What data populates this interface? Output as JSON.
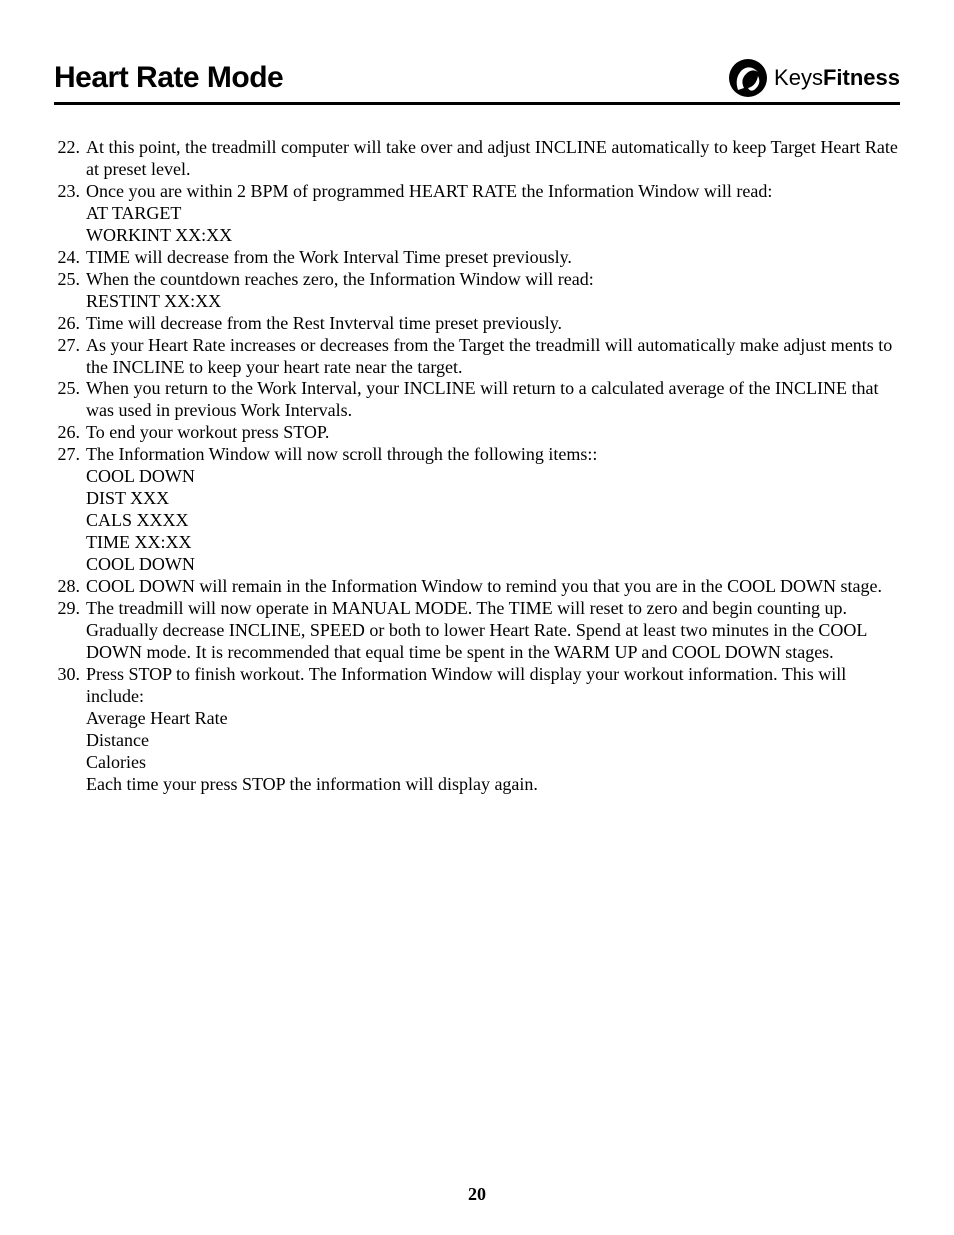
{
  "header": {
    "title": "Heart Rate Mode",
    "logo_text_normal": "Keys",
    "logo_text_bold": "Fitness"
  },
  "colors": {
    "text": "#000000",
    "rule": "#000000",
    "background": "#ffffff"
  },
  "typography": {
    "title_font": "Arial",
    "title_size_pt": 22,
    "title_weight": 900,
    "body_font": "Times New Roman",
    "body_size_pt": 13,
    "line_height": 1.22
  },
  "items": [
    {
      "num": "22.",
      "lines": [
        "At this point, the treadmill computer will take over and adjust INCLINE automatically to keep Target Heart Rate at preset level."
      ]
    },
    {
      "num": "23.",
      "lines": [
        "Once you are within 2 BPM of programmed HEART RATE the Information Window will read:",
        "AT TARGET",
        "WORKINT XX:XX"
      ]
    },
    {
      "num": "24.",
      "lines": [
        "TIME will decrease from the Work Interval Time preset previously."
      ]
    },
    {
      "num": "25.",
      "lines": [
        "When the countdown reaches zero, the Information Window will read:",
        "RESTINT XX:XX"
      ]
    },
    {
      "num": "26.",
      "lines": [
        "Time will decrease from the Rest Invterval time preset previously."
      ]
    },
    {
      "num": "27.",
      "lines": [
        "As your  Heart Rate increases or decreases from the Target the treadmill will automatically make adjust ments to the INCLINE to keep your heart rate near the target."
      ]
    },
    {
      "num": "25.",
      "lines": [
        "When you return to the Work Interval, your INCLINE will return to a calculated average of the INCLINE that was used in previous Work Intervals."
      ]
    },
    {
      "num": "26.",
      "lines": [
        "To end your workout press STOP."
      ]
    },
    {
      "num": "27.",
      "lines": [
        "The Information Window will now scroll through the following items::",
        "COOL DOWN",
        "DIST XXX",
        "CALS XXXX",
        "TIME XX:XX",
        "COOL DOWN"
      ]
    },
    {
      "num": "28.",
      "lines": [
        "COOL DOWN will remain in the Information Window to remind you that you are in the COOL DOWN stage."
      ]
    },
    {
      "num": "29.",
      "lines": [
        "The treadmill will now operate in MANUAL MODE.  The TIME will reset to zero and begin counting up.  Gradually decrease INCLINE, SPEED or both to lower Heart Rate.  Spend at least two minutes in the COOL DOWN mode.  It is recommended that equal time be spent in the WARM UP and COOL DOWN stages."
      ]
    },
    {
      "num": "30.",
      "lines": [
        " Press STOP to finish workout.  The Information Window will display your workout information.  This will include:",
        "Average Heart Rate",
        "Distance",
        "Calories",
        "Each time your press STOP the information will display again."
      ]
    }
  ],
  "page_number": "20"
}
